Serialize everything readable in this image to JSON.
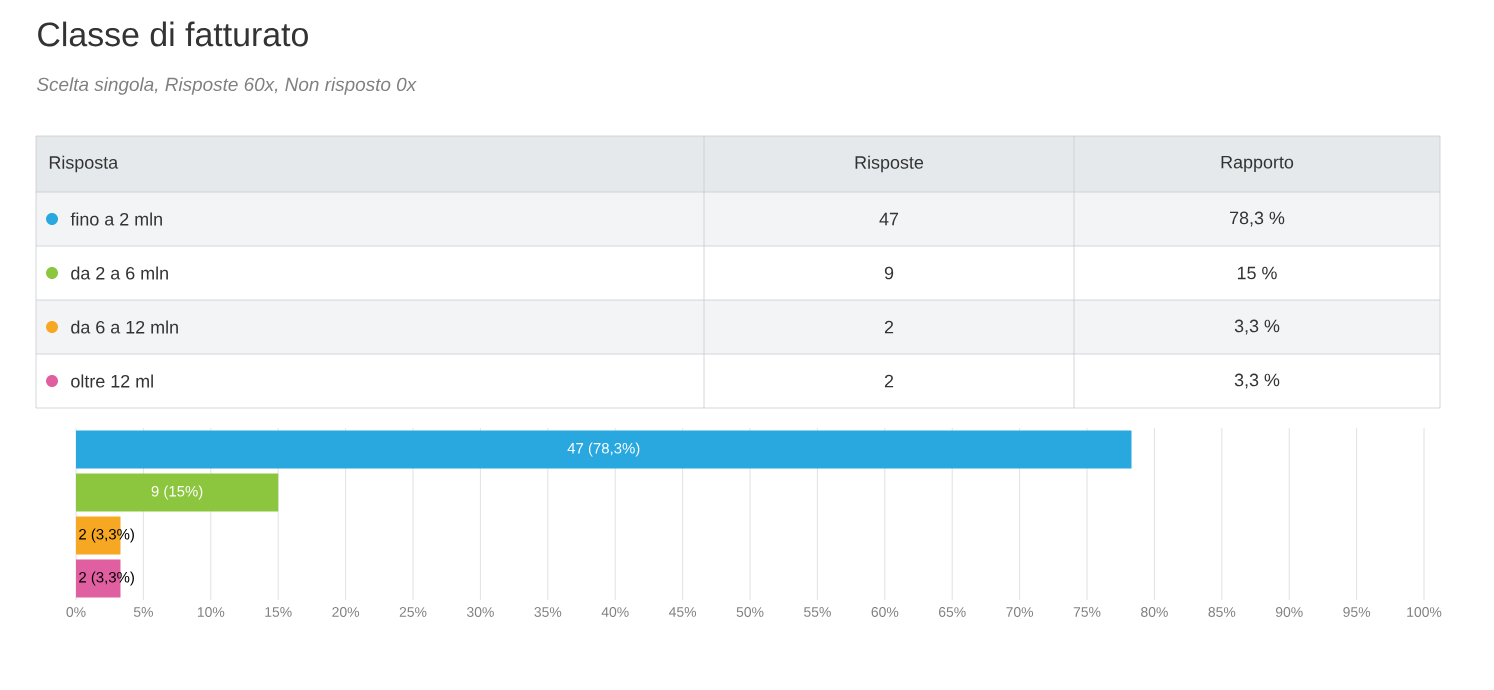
{
  "chart_data": {
    "type": "bar",
    "orientation": "horizontal",
    "title": "Classe di fatturato",
    "subtitle": "Scelta singola, Risposte 60x, Non risposto 0x",
    "categories": [
      null,
      null,
      null,
      null
    ],
    "values": [
      78.3,
      15,
      3.3,
      3.3
    ],
    "colors": [
      "#29a8e0",
      "#8cc63f",
      "#f7a823",
      "#e05fa0"
    ],
    "value_labels": [
      "47 (78,3%)",
      "9 (15%)",
      "2 (3,3%)",
      "2 (3,3%)"
    ],
    "annotations": [
      "Risposta",
      "Risposte",
      "Rapporto",
      "fino a 2 mln",
      "47",
      "78,3 %",
      "da 2 a 6 mln",
      "9",
      "15 %",
      "da 6 a 12 mln",
      "2",
      "3,3 %",
      "oltre 12 ml",
      "2",
      "3,3 %"
    ],
    "xlim": [
      0,
      100
    ],
    "xticks": [
      {
        "value": 0,
        "label": "0%"
      },
      {
        "value": 5,
        "label": "5%"
      },
      {
        "value": 10,
        "label": "10%"
      },
      {
        "value": 15,
        "label": "15%"
      },
      {
        "value": 20,
        "label": "20%"
      },
      {
        "value": 25,
        "label": "25%"
      },
      {
        "value": 30,
        "label": "30%"
      },
      {
        "value": 35,
        "label": "35%"
      },
      {
        "value": 40,
        "label": "40%"
      },
      {
        "value": 45,
        "label": "45%"
      },
      {
        "value": 50,
        "label": "50%"
      },
      {
        "value": 55,
        "label": "55%"
      },
      {
        "value": 60,
        "label": "60%"
      },
      {
        "value": 65,
        "label": "65%"
      },
      {
        "value": 70,
        "label": "70%"
      },
      {
        "value": 75,
        "label": "75%"
      },
      {
        "value": 80,
        "label": "80%"
      },
      {
        "value": 85,
        "label": "85%"
      },
      {
        "value": 90,
        "label": "90%"
      },
      {
        "value": 95,
        "label": "95%"
      },
      {
        "value": 100,
        "label": "100%"
      }
    ],
    "grid": "x",
    "tick_labels": "x"
  }
}
